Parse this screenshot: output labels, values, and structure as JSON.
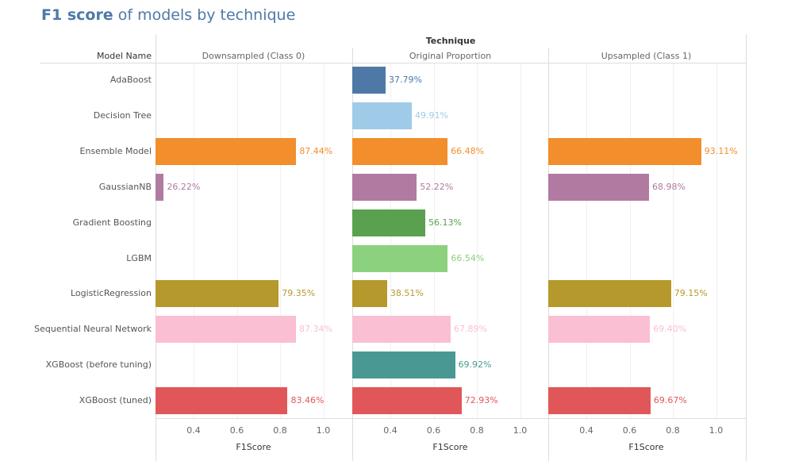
{
  "title": {
    "bold": "F1 score",
    "rest": " of models by technique"
  },
  "column_group_header": "Technique",
  "row_header": "Model Name",
  "chart_data": {
    "type": "bar",
    "orientation": "horizontal",
    "xlabel": "F1Score",
    "xlim": [
      0.224,
      1.13
    ],
    "xticks": [
      "0.4",
      "0.6",
      "0.8",
      "1.0"
    ],
    "grid": true,
    "categories": [
      "AdaBoost",
      "Decision Tree",
      "Ensemble Model",
      "GaussianNB",
      "Gradient Boosting",
      "LGBM",
      "LogisticRegression",
      "Sequential Neural Network",
      "XGBoost (before tuning)",
      "XGBoost (tuned)"
    ],
    "colors": [
      "#4e79a7",
      "#a0cbe8",
      "#f28e2b",
      "#b07aa1",
      "#59a14f",
      "#8cd17d",
      "#b6992d",
      "#fabfd2",
      "#499894",
      "#e15759"
    ],
    "panels": [
      {
        "name": "Downsampled (Class 0)",
        "values": [
          null,
          null,
          0.8744,
          0.2622,
          null,
          null,
          0.7935,
          0.8734,
          null,
          0.8346
        ],
        "labels": [
          null,
          null,
          "87.44%",
          "26.22%",
          null,
          null,
          "79.35%",
          "87.34%",
          null,
          "83.46%"
        ]
      },
      {
        "name": "Original Proportion",
        "values": [
          0.3779,
          0.4991,
          0.6648,
          0.5222,
          0.5613,
          0.6654,
          0.3851,
          0.6789,
          0.6992,
          0.7293
        ],
        "labels": [
          "37.79%",
          "49.91%",
          "66.48%",
          "52.22%",
          "56.13%",
          "66.54%",
          "38.51%",
          "67.89%",
          "69.92%",
          "72.93%"
        ]
      },
      {
        "name": "Upsampled (Class 1)",
        "values": [
          null,
          null,
          0.9311,
          0.6898,
          null,
          null,
          0.7915,
          0.694,
          null,
          0.6967
        ],
        "labels": [
          null,
          null,
          "93.11%",
          "68.98%",
          null,
          null,
          "79.15%",
          "69.40%",
          null,
          "69.67%"
        ]
      }
    ]
  }
}
